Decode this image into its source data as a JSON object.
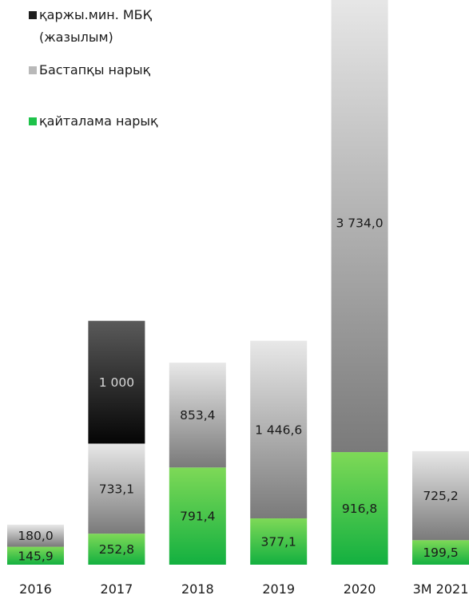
{
  "chart_data": {
    "type": "bar",
    "stacked": true,
    "categories": [
      "2016",
      "2017",
      "2018",
      "2019",
      "2020",
      "3М 2021"
    ],
    "series": [
      {
        "key": "secondary",
        "name": "қайталама нарық",
        "values": [
          145.9,
          252.8,
          791.4,
          377.1,
          916.8,
          199.5
        ],
        "color_top": "#7ed957",
        "color_bottom": "#13b040"
      },
      {
        "key": "primary",
        "name": "Бастапқы нарық",
        "values": [
          180.0,
          733.1,
          853.4,
          1446.6,
          3734.0,
          725.2
        ],
        "color_top": "#e8e8e8",
        "color_bottom": "#7a7a7a"
      },
      {
        "key": "minfin",
        "name": "қаржы.мин. МБҚ (жазылым)",
        "values": [
          null,
          1000,
          null,
          null,
          null,
          null
        ],
        "color_top": "#5a5a5a",
        "color_bottom": "#050505"
      }
    ],
    "data_labels": [
      [
        "145,9",
        "180,0",
        ""
      ],
      [
        "252,8",
        "733,1",
        "1 000"
      ],
      [
        "791,4",
        "853,4",
        ""
      ],
      [
        "377,1",
        "1 446,6",
        ""
      ],
      [
        "916,8",
        "3 734,0",
        ""
      ],
      [
        "199,5",
        "725,2",
        ""
      ]
    ],
    "legend": {
      "position": "top-left",
      "entries": [
        "қаржы.мин. МБҚ",
        "(жазылым)",
        "Бастапқы нарық",
        "қайталама нарық"
      ]
    },
    "ylim": [
      0,
      4700
    ],
    "grid": false,
    "title": "",
    "xlabel": "",
    "ylabel": ""
  }
}
